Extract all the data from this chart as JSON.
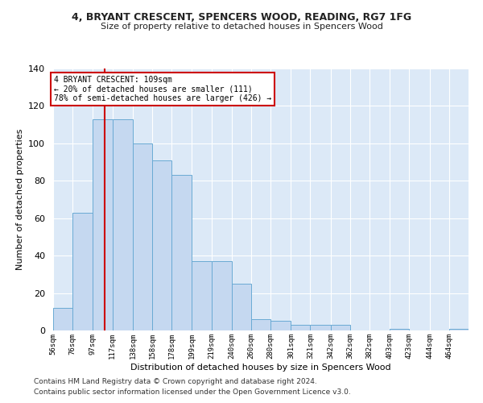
{
  "title1": "4, BRYANT CRESCENT, SPENCERS WOOD, READING, RG7 1FG",
  "title2": "Size of property relative to detached houses in Spencers Wood",
  "xlabel": "Distribution of detached houses by size in Spencers Wood",
  "ylabel": "Number of detached properties",
  "bar_color": "#c5d8f0",
  "bar_edge_color": "#6aaad4",
  "vline_x": 109,
  "vline_color": "#cc0000",
  "annotation_text": "4 BRYANT CRESCENT: 109sqm\n← 20% of detached houses are smaller (111)\n78% of semi-detached houses are larger (426) →",
  "annotation_box_color": "#ffffff",
  "annotation_box_edge": "#cc0000",
  "bins": [
    56,
    76,
    97,
    117,
    138,
    158,
    178,
    199,
    219,
    240,
    260,
    280,
    301,
    321,
    342,
    362,
    382,
    403,
    423,
    444,
    464
  ],
  "heights": [
    12,
    63,
    113,
    113,
    100,
    91,
    83,
    37,
    37,
    25,
    6,
    5,
    3,
    3,
    3,
    0,
    0,
    1,
    0,
    0,
    1
  ],
  "ylim": [
    0,
    140
  ],
  "yticks": [
    0,
    20,
    40,
    60,
    80,
    100,
    120,
    140
  ],
  "background_color": "#dce9f7",
  "fig_background": "#ffffff",
  "grid_color": "#ffffff",
  "footer1": "Contains HM Land Registry data © Crown copyright and database right 2024.",
  "footer2": "Contains public sector information licensed under the Open Government Licence v3.0."
}
